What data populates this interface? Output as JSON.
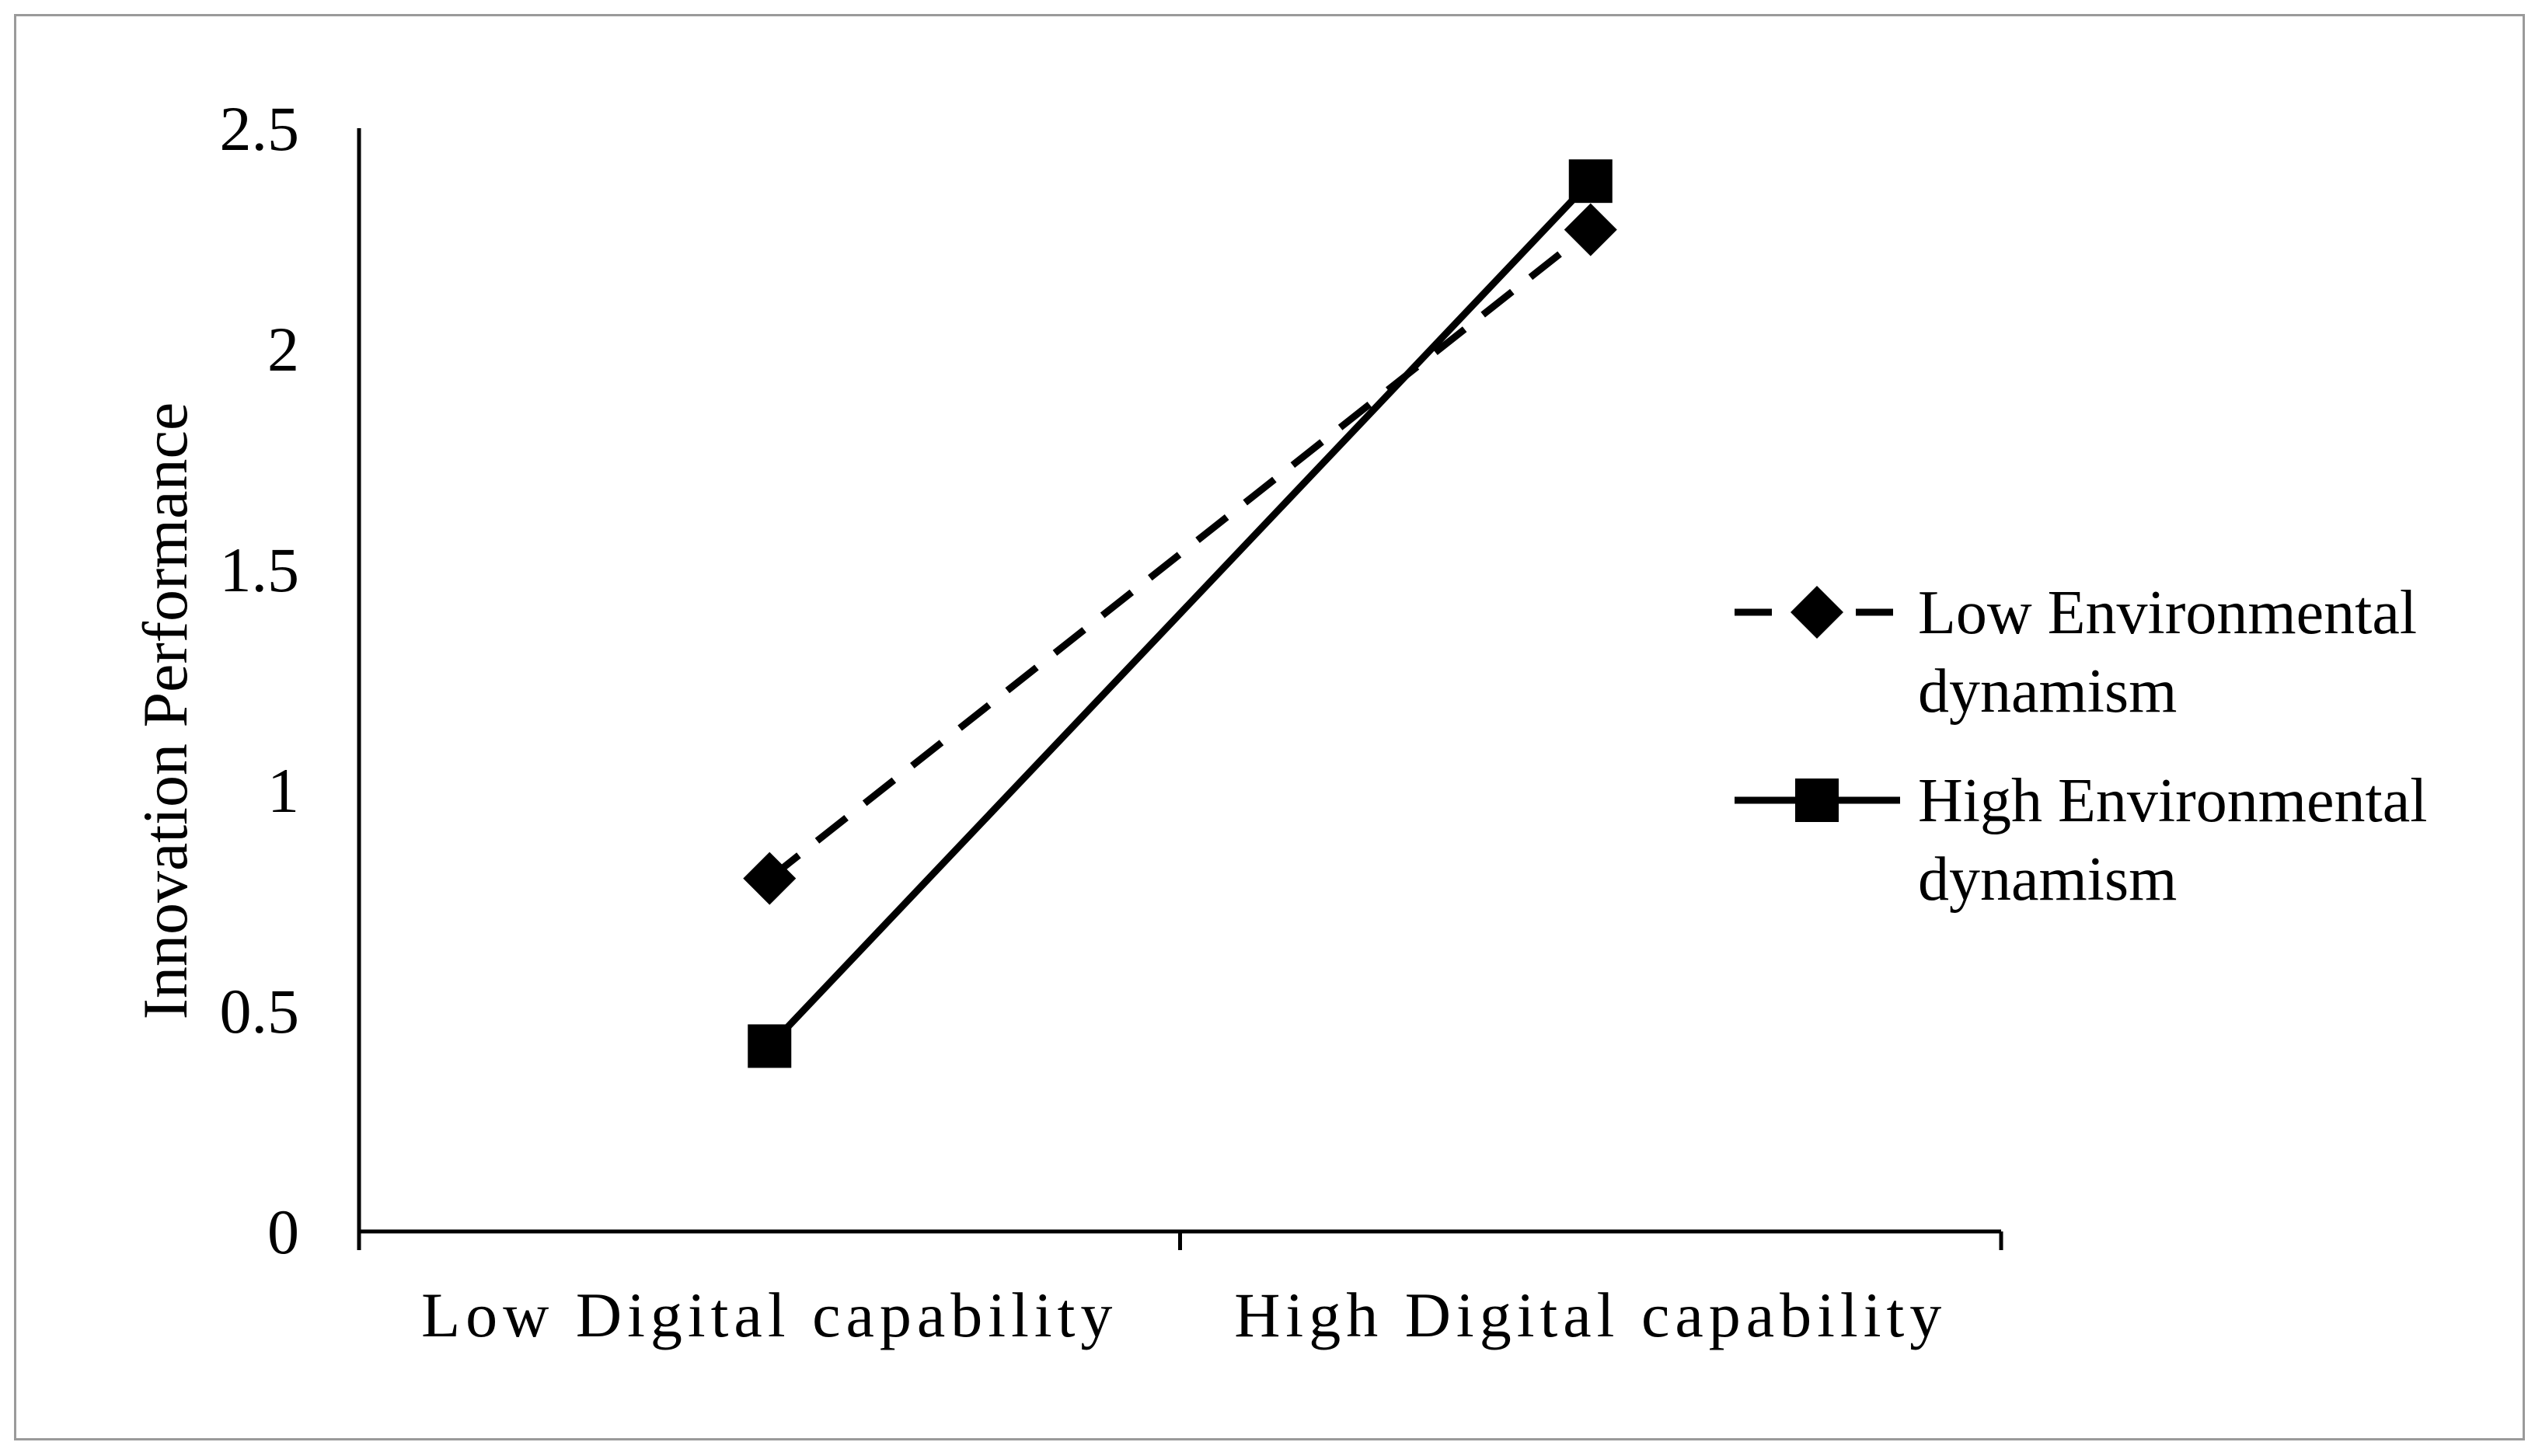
{
  "chart_data": {
    "type": "line",
    "categories": [
      "Low Digital capability",
      "High Digital capability"
    ],
    "ylabel": "Innovation Performance",
    "ylim": [
      0,
      2.5
    ],
    "yticks": [
      "0",
      "0.5",
      "1",
      "1.5",
      "2",
      "2.5"
    ],
    "grid": false,
    "legend_position": "right",
    "series": [
      {
        "name": "Low Environmental dynamism",
        "name_lines": [
          "Low Environmental",
          "dynamism"
        ],
        "values": [
          0.8,
          2.27
        ],
        "line_style": "dashed",
        "marker": "diamond",
        "color": "#000000"
      },
      {
        "name": "High Environmental dynamism",
        "name_lines": [
          "High Environmental",
          "dynamism"
        ],
        "values": [
          0.42,
          2.38
        ],
        "line_style": "solid",
        "marker": "square",
        "color": "#000000"
      }
    ]
  }
}
